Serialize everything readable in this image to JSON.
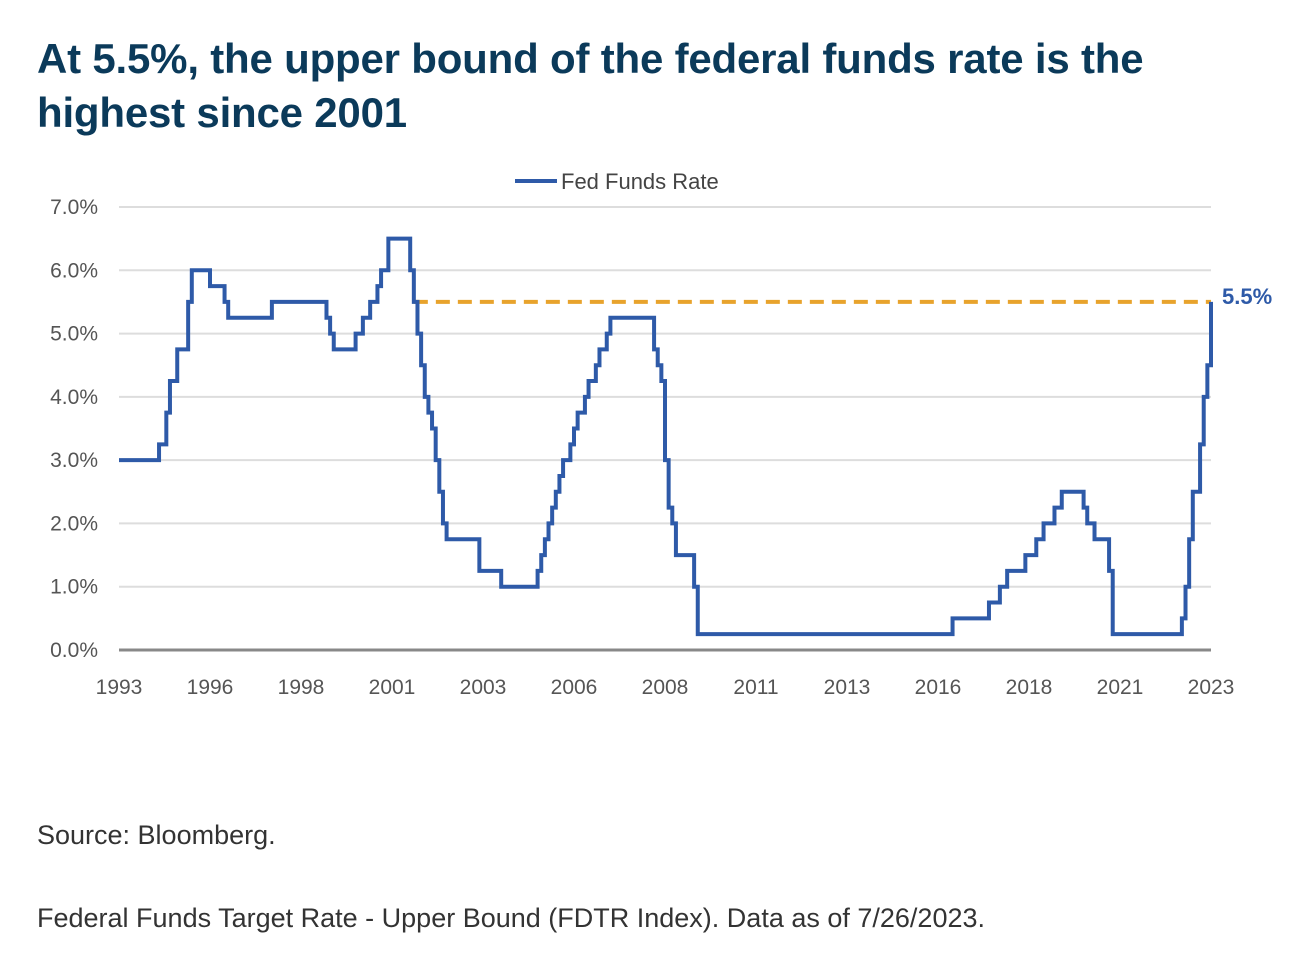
{
  "title": "At 5.5%, the upper bound of the federal funds rate is the highest since 2001",
  "source_note": "Source: Bloomberg.",
  "footnote": "Federal Funds Target Rate - Upper Bound (FDTR Index). Data as of 7/26/2023.",
  "colors": {
    "title": "#0b3a5a",
    "series": "#2e5aa8",
    "reference_line": "#e8a32c",
    "gridline": "#dddddd",
    "baseline": "#888888"
  },
  "chart_data": {
    "type": "line",
    "step": true,
    "title": "At 5.5%, the upper bound of the federal funds rate is the highest since 2001",
    "xlabel": "",
    "ylabel": "",
    "xlim": [
      1993,
      2023.6
    ],
    "ylim": [
      0,
      7
    ],
    "x_ticks": [
      "1993",
      "1996",
      "1998",
      "2001",
      "2003",
      "2006",
      "2008",
      "2011",
      "2013",
      "2016",
      "2018",
      "2021",
      "2023"
    ],
    "x_tick_positions": [
      1993,
      1995.5,
      1998.0,
      2000.5,
      2003.0,
      2005.5,
      2008.0,
      2010.5,
      2013.0,
      2015.5,
      2018.0,
      2020.5,
      2023.0
    ],
    "y_ticks": [
      "0.0%",
      "1.0%",
      "2.0%",
      "3.0%",
      "4.0%",
      "5.0%",
      "6.0%",
      "7.0%"
    ],
    "y_tick_values": [
      0,
      1,
      2,
      3,
      4,
      5,
      6,
      7
    ],
    "grid": "horizontal",
    "legend": {
      "position": "top-center",
      "entries": [
        "Fed Funds Rate"
      ]
    },
    "series": [
      {
        "name": "Fed Funds Rate",
        "x": [
          1993.0,
          1994.1,
          1994.3,
          1994.4,
          1994.6,
          1994.9,
          1995.0,
          1995.5,
          1995.9,
          1996.0,
          1997.2,
          1998.7,
          1998.8,
          1998.9,
          1999.5,
          1999.7,
          1999.9,
          2000.1,
          2000.2,
          2000.4,
          2001.0,
          2001.1,
          2001.2,
          2001.3,
          2001.4,
          2001.5,
          2001.6,
          2001.7,
          2001.8,
          2001.9,
          2002.0,
          2002.9,
          2003.5,
          2004.5,
          2004.6,
          2004.7,
          2004.8,
          2004.9,
          2005.0,
          2005.1,
          2005.2,
          2005.4,
          2005.5,
          2005.6,
          2005.8,
          2005.9,
          2006.1,
          2006.2,
          2006.4,
          2006.5,
          2007.7,
          2007.8,
          2007.9,
          2008.0,
          2008.1,
          2008.2,
          2008.3,
          2008.8,
          2008.9,
          2009.0,
          2015.9,
          2016.9,
          2017.2,
          2017.4,
          2017.9,
          2018.2,
          2018.4,
          2018.7,
          2018.9,
          2019.5,
          2019.6,
          2019.8,
          2020.2,
          2020.3,
          2022.2,
          2022.3,
          2022.4,
          2022.5,
          2022.7,
          2022.8,
          2022.9,
          2023.0,
          2023.1,
          2023.3,
          2023.5
        ],
        "values": [
          3.0,
          3.25,
          3.75,
          4.25,
          4.75,
          5.5,
          6.0,
          5.75,
          5.5,
          5.25,
          5.5,
          5.25,
          5.0,
          4.75,
          5.0,
          5.25,
          5.5,
          5.75,
          6.0,
          6.5,
          6.0,
          5.5,
          5.0,
          4.5,
          4.0,
          3.75,
          3.5,
          3.0,
          2.5,
          2.0,
          1.75,
          1.25,
          1.0,
          1.25,
          1.5,
          1.75,
          2.0,
          2.25,
          2.5,
          2.75,
          3.0,
          3.25,
          3.5,
          3.75,
          4.0,
          4.25,
          4.5,
          4.75,
          5.0,
          5.25,
          4.75,
          4.5,
          4.25,
          3.0,
          2.25,
          2.0,
          1.5,
          1.0,
          0.25,
          0.25,
          0.5,
          0.75,
          1.0,
          1.25,
          1.5,
          1.75,
          2.0,
          2.25,
          2.5,
          2.25,
          2.0,
          1.75,
          1.25,
          0.25,
          0.5,
          1.0,
          1.75,
          2.5,
          3.25,
          4.0,
          4.5,
          4.75,
          5.0,
          5.25,
          5.5
        ],
        "end_x": 2023.6
      }
    ],
    "reference_line": {
      "value": 5.5,
      "from_x": 2001.1,
      "to_x": 2023.6,
      "style": "dashed"
    },
    "annotations": [
      {
        "text": "5.5%",
        "x": 2023.6,
        "y": 5.5,
        "position": "right"
      }
    ]
  }
}
